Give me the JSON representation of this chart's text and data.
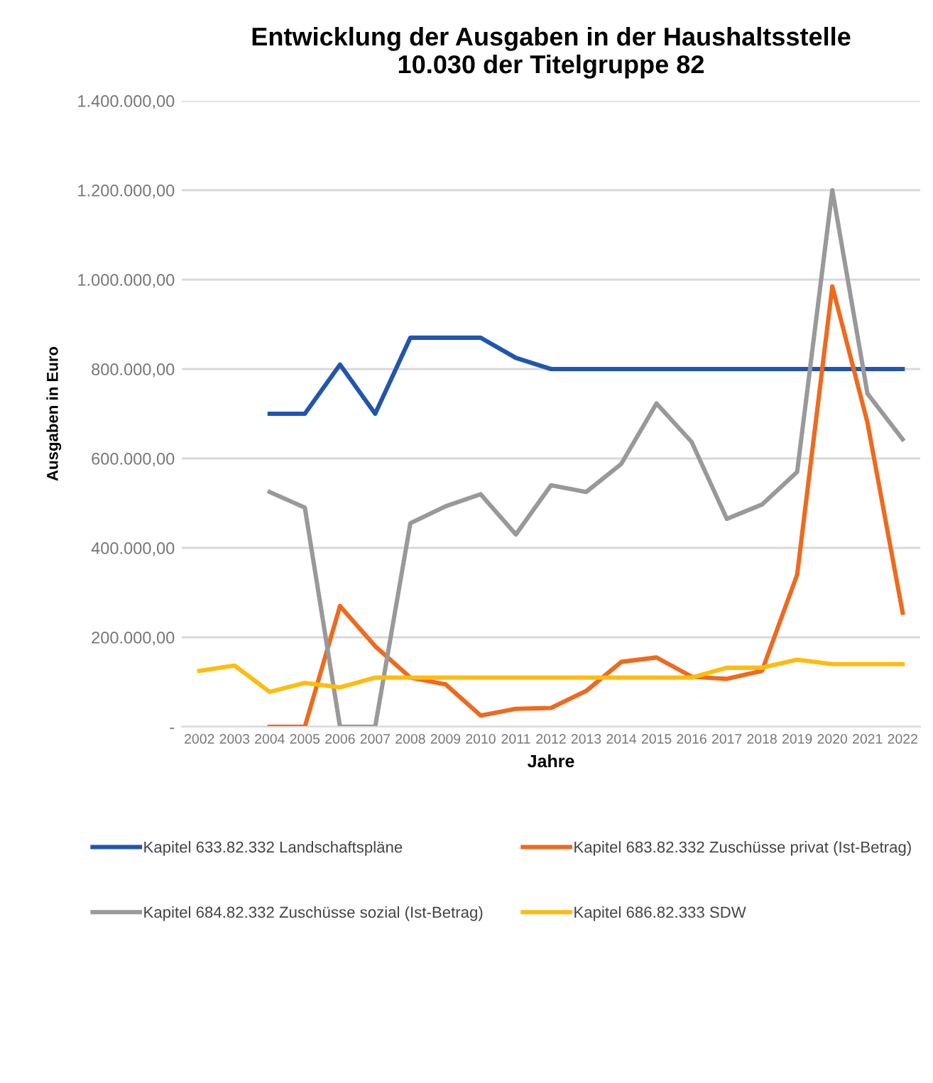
{
  "chart_data": {
    "type": "line",
    "title": "Entwicklung der Ausgaben in der Haushaltsstelle\n10.030 der Titelgruppe 82",
    "xlabel": "Jahre",
    "ylabel": "Ausgaben in Euro",
    "categories": [
      "2002",
      "2003",
      "2004",
      "2005",
      "2006",
      "2007",
      "2008",
      "2009",
      "2010",
      "2011",
      "2012",
      "2013",
      "2014",
      "2015",
      "2016",
      "2017",
      "2018",
      "2019",
      "2020",
      "2021",
      "2022"
    ],
    "ylim": [
      0,
      1400000
    ],
    "yticks": [
      {
        "value": 0,
        "label": "-"
      },
      {
        "value": 200000,
        "label": "200.000,00"
      },
      {
        "value": 400000,
        "label": "400.000,00"
      },
      {
        "value": 600000,
        "label": "600.000,00"
      },
      {
        "value": 800000,
        "label": "800.000,00"
      },
      {
        "value": 1000000,
        "label": "1.000.000,00"
      },
      {
        "value": 1200000,
        "label": "1.200.000,00"
      },
      {
        "value": 1400000,
        "label": "1.400.000,00"
      }
    ],
    "grid": "y",
    "legend": "bottom",
    "marker": "none",
    "line_style": "solid",
    "series": [
      {
        "name": "Kapitel 633.82.332 Landschaftspläne",
        "color": "#2155b0",
        "values": [
          null,
          null,
          700000,
          700000,
          810000,
          700000,
          870000,
          870000,
          870000,
          825000,
          800000,
          800000,
          800000,
          800000,
          800000,
          800000,
          800000,
          800000,
          800000,
          800000,
          800000
        ]
      },
      {
        "name": "Kapitel 683.82.332 Zuschüsse privat (Ist-Betrag)",
        "color": "#ee6a1e",
        "values": [
          null,
          null,
          0,
          0,
          270000,
          180000,
          110000,
          95000,
          25000,
          40000,
          42000,
          80000,
          145000,
          155000,
          112000,
          107000,
          125000,
          340000,
          985000,
          680000,
          255000
        ]
      },
      {
        "name": "Kapitel 684.82.332 Zuschüsse sozial (Ist-Betrag)",
        "color": "#999999",
        "values": [
          null,
          null,
          525000,
          490000,
          0,
          0,
          455000,
          493000,
          520000,
          430000,
          540000,
          525000,
          588000,
          723000,
          637000,
          465000,
          497000,
          570000,
          1200000,
          745000,
          643000
        ]
      },
      {
        "name": "Kapitel 686.82.333 SDW",
        "color": "#fdbd10",
        "values": [
          125000,
          137000,
          78000,
          98000,
          88000,
          110000,
          110000,
          110000,
          110000,
          110000,
          110000,
          110000,
          110000,
          110000,
          110000,
          132000,
          132000,
          150000,
          140000,
          140000,
          140000
        ]
      }
    ]
  }
}
